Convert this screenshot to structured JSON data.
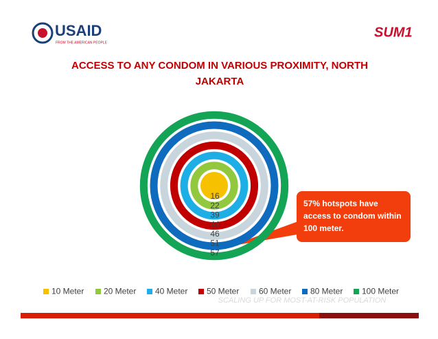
{
  "header": {
    "logo_left": "USAID",
    "logo_left_tagline": "FROM THE AMERICAN PEOPLE",
    "logo_right": "SUM1"
  },
  "chart_data": {
    "type": "rings",
    "title": "ACCESS TO ANY CONDOM IN VARIOUS PROXIMITY, NORTH JAKARTA",
    "categories": [
      "10 Meter",
      "20 Meter",
      "40 Meter",
      "50 Meter",
      "60 Meter",
      "80 Meter",
      "100 Meter"
    ],
    "values": [
      16,
      22,
      39,
      44,
      46,
      51,
      57
    ],
    "colors": [
      "#f6c200",
      "#92c83e",
      "#1eaee6",
      "#c00000",
      "#c9d5dd",
      "#0f6bbd",
      "#14a455"
    ],
    "legend": "bottom"
  },
  "callout": "57% hotspots have access to condom within 100 meter.",
  "footer": "SCALING UP FOR MOST-AT-RISK POPULATION"
}
